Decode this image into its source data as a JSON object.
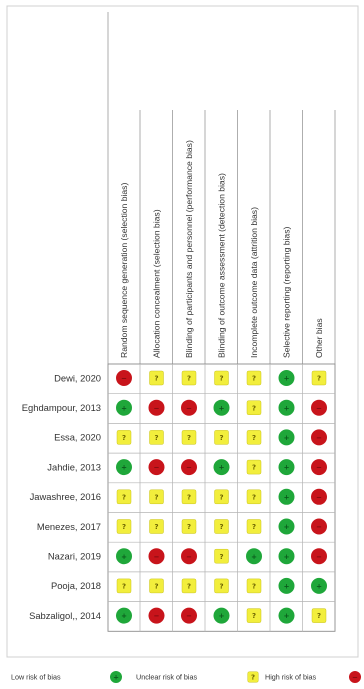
{
  "chart_data": {
    "type": "table",
    "domains": [
      "Random sequence generation (selection bias)",
      "Allocation concealment (selection bias)",
      "Blinding of participants and personnel (performance bias)",
      "Blinding of outcome assessment (detection bias)",
      "Incomplete outcome data (attrition bias)",
      "Selective reporting (reporting bias)",
      "Other bias"
    ],
    "studies": [
      {
        "name": "Dewi, 2020",
        "ratings": [
          "high",
          "unclear",
          "unclear",
          "unclear",
          "unclear",
          "low",
          "unclear"
        ]
      },
      {
        "name": "Eghdampour, 2013",
        "ratings": [
          "low",
          "high",
          "high",
          "low",
          "unclear",
          "low",
          "high"
        ]
      },
      {
        "name": "Essa, 2020",
        "ratings": [
          "unclear",
          "unclear",
          "unclear",
          "unclear",
          "unclear",
          "low",
          "high"
        ]
      },
      {
        "name": "Jahdie, 2013",
        "ratings": [
          "low",
          "high",
          "high",
          "low",
          "unclear",
          "low",
          "high"
        ]
      },
      {
        "name": "Jawashree, 2016",
        "ratings": [
          "unclear",
          "unclear",
          "unclear",
          "unclear",
          "unclear",
          "low",
          "high"
        ]
      },
      {
        "name": "Menezes, 2017",
        "ratings": [
          "unclear",
          "unclear",
          "unclear",
          "unclear",
          "unclear",
          "low",
          "high"
        ]
      },
      {
        "name": "Nazari, 2019",
        "ratings": [
          "low",
          "high",
          "high",
          "unclear",
          "low",
          "low",
          "high"
        ]
      },
      {
        "name": "Pooja, 2018",
        "ratings": [
          "unclear",
          "unclear",
          "unclear",
          "unclear",
          "unclear",
          "low",
          "low"
        ]
      },
      {
        "name": "Sabzaligol,, 2014",
        "ratings": [
          "low",
          "high",
          "high",
          "low",
          "unclear",
          "low",
          "unclear"
        ]
      }
    ],
    "legend": [
      {
        "key": "low",
        "label": "Low risk of bias"
      },
      {
        "key": "unclear",
        "label": "Unclear risk of bias"
      },
      {
        "key": "high",
        "label": "High risk of bias"
      }
    ],
    "colors": {
      "low": "#1fa73a",
      "unclear": "#f2ee3c",
      "high": "#c8141b"
    },
    "symbols": {
      "low": "+",
      "unclear": "?",
      "high": "−"
    }
  }
}
